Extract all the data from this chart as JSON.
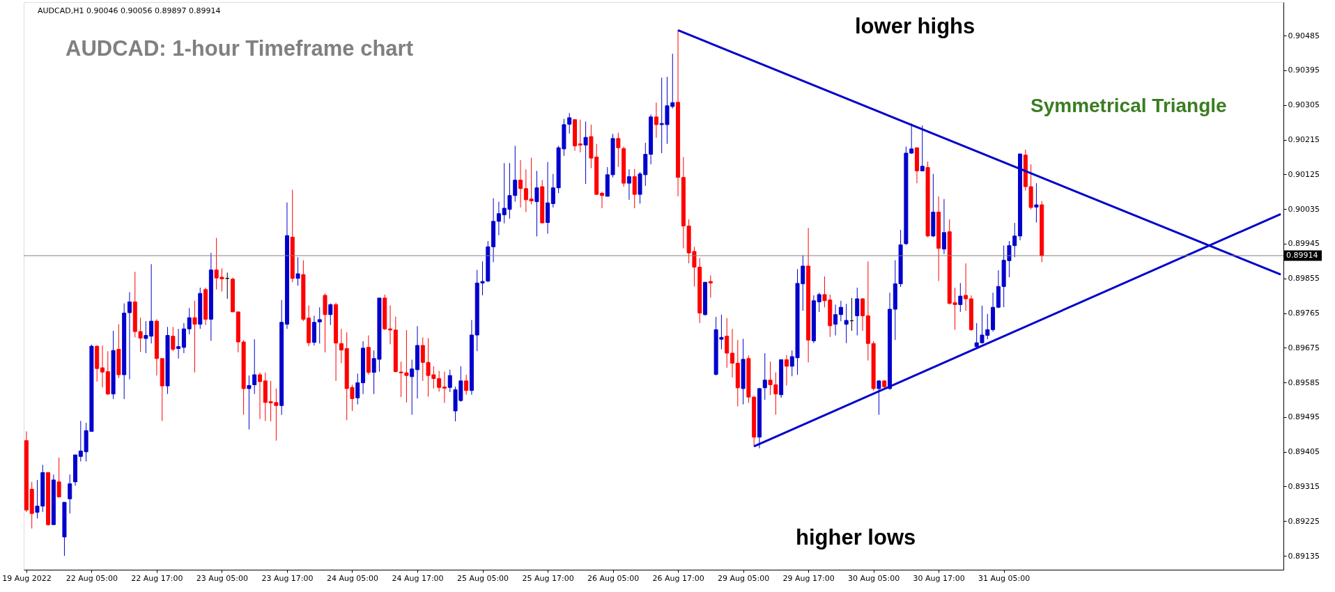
{
  "chart_data": {
    "type": "candlestick",
    "title": "AUDCAD: 1-hour Timeframe chart",
    "annotations": [
      "AUDCAD,H1  0.90046 0.90056 0.89897 0.89914",
      "lower highs",
      "higher lows",
      "Symmetrical Triangle"
    ],
    "categories": [
      "19 Aug 2022",
      null,
      null,
      null,
      null,
      null,
      null,
      null,
      null,
      null,
      null,
      null,
      "22 Aug 05:00",
      null,
      null,
      null,
      null,
      null,
      null,
      null,
      null,
      null,
      null,
      null,
      "22 Aug 17:00",
      null,
      null,
      null,
      null,
      null,
      null,
      null,
      null,
      null,
      null,
      null,
      "23 Aug 05:00",
      null,
      null,
      null,
      null,
      null,
      null,
      null,
      null,
      null,
      null,
      null,
      "23 Aug 17:00",
      null,
      null,
      null,
      null,
      null,
      null,
      null,
      null,
      null,
      null,
      null,
      "24 Aug 05:00",
      null,
      null,
      null,
      null,
      null,
      null,
      null,
      null,
      null,
      null,
      null,
      "24 Aug 17:00",
      null,
      null,
      null,
      null,
      null,
      null,
      null,
      null,
      null,
      null,
      null,
      "25 Aug 05:00",
      null,
      null,
      null,
      null,
      null,
      null,
      null,
      null,
      null,
      null,
      null,
      "25 Aug 17:00",
      null,
      null,
      null,
      null,
      null,
      null,
      null,
      null,
      null,
      null,
      null,
      "26 Aug 05:00",
      null,
      null,
      null,
      null,
      null,
      null,
      null,
      null,
      null,
      null,
      null,
      "26 Aug 17:00",
      null,
      null,
      null,
      null,
      null,
      null,
      null,
      null,
      null,
      null,
      null,
      "29 Aug 05:00",
      null,
      null,
      null,
      null,
      null,
      null,
      null,
      null,
      null,
      null,
      null,
      "29 Aug 17:00",
      null,
      null,
      null,
      null,
      null,
      null,
      null,
      null,
      null,
      null,
      null,
      "30 Aug 05:00",
      null,
      null,
      null,
      null,
      null,
      null,
      null,
      null,
      null,
      null,
      null,
      "30 Aug 17:00",
      null,
      null,
      null,
      null,
      null,
      null,
      null,
      null,
      null,
      null,
      null,
      "31 Aug 05:00",
      null,
      null,
      null,
      null,
      null,
      null,
      null,
      null,
      null,
      null,
      null,
      null,
      null,
      null,
      null,
      null,
      null,
      null,
      null,
      null,
      null,
      null,
      null,
      null,
      null,
      null,
      null,
      null,
      null,
      null,
      null,
      null,
      null,
      null,
      null,
      null,
      null,
      null,
      null,
      null,
      null,
      null,
      null,
      null,
      null,
      null,
      null,
      null,
      null,
      null,
      null
    ],
    "ohlc": [
      [
        0.89434,
        0.89458,
        0.89249,
        0.89254
      ],
      [
        0.89308,
        0.89327,
        0.89206,
        0.89245
      ],
      [
        0.89248,
        0.89332,
        0.89232,
        0.89264
      ],
      [
        0.89264,
        0.89371,
        0.89249,
        0.89351
      ],
      [
        0.89351,
        0.89351,
        0.89213,
        0.89216
      ],
      [
        0.89216,
        0.89346,
        0.89216,
        0.89332
      ],
      [
        0.89327,
        0.8939,
        0.89286,
        0.89288
      ],
      [
        0.89184,
        0.89274,
        0.89135,
        0.89274
      ],
      [
        0.89283,
        0.89346,
        0.89245,
        0.89322
      ],
      [
        0.89327,
        0.89397,
        0.89317,
        0.89397
      ],
      [
        0.89393,
        0.89485,
        0.8938,
        0.89407
      ],
      [
        0.89405,
        0.8948,
        0.8938,
        0.8946
      ],
      [
        0.89458,
        0.89683,
        0.89458,
        0.89679
      ],
      [
        0.89679,
        0.89681,
        0.89587,
        0.89621
      ],
      [
        0.89623,
        0.89681,
        0.89572,
        0.89612
      ],
      [
        0.89613,
        0.89666,
        0.89552,
        0.89555
      ],
      [
        0.89555,
        0.89719,
        0.89542,
        0.89668
      ],
      [
        0.89671,
        0.89736,
        0.89596,
        0.89605
      ],
      [
        0.89605,
        0.8979,
        0.89542,
        0.89765
      ],
      [
        0.89766,
        0.89819,
        0.89593,
        0.89794
      ],
      [
        0.89794,
        0.89872,
        0.89702,
        0.89717
      ],
      [
        0.89717,
        0.89753,
        0.89664,
        0.897
      ],
      [
        0.89699,
        0.89744,
        0.89661,
        0.89707
      ],
      [
        0.89705,
        0.89892,
        0.89686,
        0.89744
      ],
      [
        0.89744,
        0.89749,
        0.89603,
        0.89647
      ],
      [
        0.89647,
        0.89647,
        0.89485,
        0.89576
      ],
      [
        0.89576,
        0.89729,
        0.89555,
        0.89707
      ],
      [
        0.89705,
        0.89729,
        0.89666,
        0.89671
      ],
      [
        0.89673,
        0.89724,
        0.89647,
        0.89678
      ],
      [
        0.89676,
        0.89739,
        0.89661,
        0.89724
      ],
      [
        0.89724,
        0.89778,
        0.8971,
        0.89753
      ],
      [
        0.89753,
        0.89797,
        0.89611,
        0.89736
      ],
      [
        0.89736,
        0.89831,
        0.89724,
        0.89816
      ],
      [
        0.89826,
        0.89831,
        0.89734,
        0.89749
      ],
      [
        0.89749,
        0.89921,
        0.89693,
        0.89877
      ],
      [
        0.89877,
        0.8996,
        0.89826,
        0.89856
      ],
      [
        0.89858,
        0.89881,
        0.89821,
        0.89854
      ],
      [
        0.89855,
        0.8987,
        0.89802,
        0.89855
      ],
      [
        0.89853,
        0.89857,
        0.89768,
        0.89768
      ],
      [
        0.89768,
        0.89768,
        0.89663,
        0.8969
      ],
      [
        0.8969,
        0.89695,
        0.89501,
        0.89569
      ],
      [
        0.89569,
        0.89603,
        0.89463,
        0.89577
      ],
      [
        0.89579,
        0.89697,
        0.89555,
        0.89605
      ],
      [
        0.89605,
        0.89611,
        0.8949,
        0.89587
      ],
      [
        0.89589,
        0.89611,
        0.89485,
        0.89533
      ],
      [
        0.89535,
        0.89589,
        0.89484,
        0.89532
      ],
      [
        0.89533,
        0.89569,
        0.89434,
        0.89525
      ],
      [
        0.89525,
        0.89799,
        0.89501,
        0.89741
      ],
      [
        0.89736,
        0.90052,
        0.89724,
        0.89966
      ],
      [
        0.89962,
        0.90085,
        0.89845,
        0.89855
      ],
      [
        0.89855,
        0.8991,
        0.89836,
        0.89867
      ],
      [
        0.89865,
        0.89902,
        0.89744,
        0.89749
      ],
      [
        0.89752,
        0.89785,
        0.89679,
        0.89688
      ],
      [
        0.89689,
        0.89758,
        0.89681,
        0.89741
      ],
      [
        0.89742,
        0.8978,
        0.89686,
        0.89748
      ],
      [
        0.89811,
        0.89816,
        0.89663,
        0.89761
      ],
      [
        0.89761,
        0.8979,
        0.89734,
        0.89787
      ],
      [
        0.89787,
        0.89792,
        0.89589,
        0.89687
      ],
      [
        0.89686,
        0.89724,
        0.89635,
        0.89669
      ],
      [
        0.89673,
        0.89715,
        0.89487,
        0.89569
      ],
      [
        0.89572,
        0.89579,
        0.89511,
        0.89543
      ],
      [
        0.89545,
        0.89608,
        0.89528,
        0.89584
      ],
      [
        0.89584,
        0.89692,
        0.89555,
        0.89674
      ],
      [
        0.89676,
        0.89707,
        0.89605,
        0.89611
      ],
      [
        0.89611,
        0.89668,
        0.89555,
        0.89647
      ],
      [
        0.89645,
        0.89804,
        0.89613,
        0.89804
      ],
      [
        0.89804,
        0.89813,
        0.89721,
        0.89724
      ],
      [
        0.89724,
        0.89785,
        0.89684,
        0.89721
      ],
      [
        0.89721,
        0.89756,
        0.89611,
        0.89613
      ],
      [
        0.89612,
        0.89639,
        0.89547,
        0.8961
      ],
      [
        0.8961,
        0.89721,
        0.89533,
        0.89603
      ],
      [
        0.896,
        0.89644,
        0.89501,
        0.8962
      ],
      [
        0.89618,
        0.89731,
        0.89543,
        0.89681
      ],
      [
        0.89681,
        0.89702,
        0.89589,
        0.89637
      ],
      [
        0.89637,
        0.897,
        0.89548,
        0.89603
      ],
      [
        0.89605,
        0.89627,
        0.89569,
        0.89595
      ],
      [
        0.89595,
        0.89615,
        0.89561,
        0.89572
      ],
      [
        0.89573,
        0.89613,
        0.89532,
        0.8957
      ],
      [
        0.89572,
        0.89618,
        0.8956,
        0.89603
      ],
      [
        0.89511,
        0.89574,
        0.89484,
        0.89566
      ],
      [
        0.89538,
        0.89627,
        0.89535,
        0.89589
      ],
      [
        0.89589,
        0.89605,
        0.89553,
        0.89564
      ],
      [
        0.89564,
        0.89747,
        0.89553,
        0.89708
      ],
      [
        0.89708,
        0.89877,
        0.89666,
        0.89843
      ],
      [
        0.89843,
        0.89899,
        0.89811,
        0.89847
      ],
      [
        0.89848,
        0.89952,
        0.89845,
        0.89937
      ],
      [
        0.89937,
        0.90063,
        0.89897,
        0.90003
      ],
      [
        0.90003,
        0.90054,
        0.89967,
        0.90023
      ],
      [
        0.9002,
        0.90154,
        0.89998,
        0.90037
      ],
      [
        0.90034,
        0.90154,
        0.9001,
        0.9007
      ],
      [
        0.9007,
        0.90199,
        0.90054,
        0.9011
      ],
      [
        0.9011,
        0.90162,
        0.90039,
        0.90088
      ],
      [
        0.90088,
        0.90138,
        0.90027,
        0.90059
      ],
      [
        0.90061,
        0.90168,
        0.90047,
        0.90056
      ],
      [
        0.90054,
        0.90134,
        0.89964,
        0.9009
      ],
      [
        0.90093,
        0.9011,
        0.89998,
        0.89999
      ],
      [
        0.9,
        0.90157,
        0.89971,
        0.90051
      ],
      [
        0.90049,
        0.90126,
        0.90039,
        0.9009
      ],
      [
        0.9009,
        0.90199,
        0.90076,
        0.90194
      ],
      [
        0.90191,
        0.90269,
        0.90173,
        0.90254
      ],
      [
        0.90255,
        0.90284,
        0.90231,
        0.90272
      ],
      [
        0.90267,
        0.90267,
        0.90186,
        0.90199
      ],
      [
        0.90204,
        0.90267,
        0.90182,
        0.90201
      ],
      [
        0.90201,
        0.90262,
        0.901,
        0.90221
      ],
      [
        0.90223,
        0.90254,
        0.90141,
        0.90167
      ],
      [
        0.9017,
        0.90204,
        0.90071,
        0.90073
      ],
      [
        0.90076,
        0.9008,
        0.90037,
        0.9007
      ],
      [
        0.90068,
        0.90144,
        0.90068,
        0.90124
      ],
      [
        0.90124,
        0.9023,
        0.90117,
        0.90218
      ],
      [
        0.90218,
        0.90233,
        0.90144,
        0.90194
      ],
      [
        0.90192,
        0.90197,
        0.90093,
        0.90102
      ],
      [
        0.90102,
        0.90138,
        0.90059,
        0.90119
      ],
      [
        0.90119,
        0.90139,
        0.90037,
        0.90073
      ],
      [
        0.90073,
        0.90131,
        0.90049,
        0.90126
      ],
      [
        0.90124,
        0.90207,
        0.90095,
        0.90177
      ],
      [
        0.90177,
        0.9028,
        0.90151,
        0.90274
      ],
      [
        0.90274,
        0.90311,
        0.9022,
        0.90254
      ],
      [
        0.90254,
        0.90376,
        0.9018,
        0.90257
      ],
      [
        0.90254,
        0.90378,
        0.90204,
        0.90303
      ],
      [
        0.90301,
        0.90438,
        0.90296,
        0.90311
      ],
      [
        0.90312,
        0.90499,
        0.90068,
        0.90117
      ],
      [
        0.90117,
        0.9017,
        0.89933,
        0.89991
      ],
      [
        0.89991,
        0.90008,
        0.89894,
        0.89921
      ],
      [
        0.89925,
        0.89937,
        0.89834,
        0.89884
      ],
      [
        0.89884,
        0.89908,
        0.89739,
        0.89765
      ],
      [
        0.89761,
        0.89845,
        0.89758,
        0.89845
      ],
      [
        0.89847,
        0.89863,
        0.89805,
        0.89843
      ],
      [
        0.89606,
        0.89755,
        0.89603,
        0.89722
      ],
      [
        0.89697,
        0.89761,
        0.89671,
        0.89702
      ],
      [
        0.89705,
        0.89752,
        0.89623,
        0.89661
      ],
      [
        0.89661,
        0.89724,
        0.89598,
        0.89635
      ],
      [
        0.89635,
        0.89695,
        0.89523,
        0.89571
      ],
      [
        0.89569,
        0.89698,
        0.89528,
        0.89645
      ],
      [
        0.89647,
        0.89655,
        0.89532,
        0.89547
      ],
      [
        0.89547,
        0.8955,
        0.89419,
        0.89443
      ],
      [
        0.89443,
        0.89571,
        0.89414,
        0.89569
      ],
      [
        0.89571,
        0.89661,
        0.8954,
        0.89591
      ],
      [
        0.89591,
        0.89639,
        0.89552,
        0.89579
      ],
      [
        0.89579,
        0.89611,
        0.89501,
        0.89555
      ],
      [
        0.89553,
        0.89644,
        0.89545,
        0.89644
      ],
      [
        0.89644,
        0.89656,
        0.89577,
        0.89627
      ],
      [
        0.89627,
        0.89668,
        0.89601,
        0.89652
      ],
      [
        0.89649,
        0.89879,
        0.89605,
        0.89842
      ],
      [
        0.89841,
        0.89915,
        0.89771,
        0.89887
      ],
      [
        0.89887,
        0.89986,
        0.89637,
        0.89695
      ],
      [
        0.89693,
        0.89811,
        0.89687,
        0.89797
      ],
      [
        0.89794,
        0.89818,
        0.89768,
        0.89813
      ],
      [
        0.89813,
        0.8986,
        0.8978,
        0.89797
      ],
      [
        0.89799,
        0.89813,
        0.89703,
        0.89732
      ],
      [
        0.89736,
        0.89787,
        0.89707,
        0.89761
      ],
      [
        0.89761,
        0.89797,
        0.89744,
        0.8978
      ],
      [
        0.89736,
        0.89789,
        0.89687,
        0.89746
      ],
      [
        0.89745,
        0.89804,
        0.89719,
        0.89745
      ],
      [
        0.89758,
        0.89831,
        0.89707,
        0.89802
      ],
      [
        0.89802,
        0.89804,
        0.89719,
        0.89758
      ],
      [
        0.89758,
        0.89899,
        0.89642,
        0.89686
      ],
      [
        0.89686,
        0.89692,
        0.89564,
        0.89569
      ],
      [
        0.89569,
        0.89591,
        0.89501,
        0.89589
      ],
      [
        0.89589,
        0.89591,
        0.89569,
        0.89574
      ],
      [
        0.89569,
        0.89818,
        0.89566,
        0.89775
      ],
      [
        0.89775,
        0.89902,
        0.89695,
        0.89841
      ],
      [
        0.89841,
        0.89981,
        0.89833,
        0.89942
      ],
      [
        0.89945,
        0.90197,
        0.89942,
        0.9018
      ],
      [
        0.9018,
        0.90257,
        0.90178,
        0.90191
      ],
      [
        0.90194,
        0.90194,
        0.90102,
        0.90134
      ],
      [
        0.90134,
        0.90252,
        0.90133,
        0.90146
      ],
      [
        0.90143,
        0.90158,
        0.89962,
        0.89965
      ],
      [
        0.89965,
        0.90126,
        0.89962,
        0.90027
      ],
      [
        0.90027,
        0.90068,
        0.89848,
        0.89933
      ],
      [
        0.89931,
        0.90061,
        0.89918,
        0.89974
      ],
      [
        0.89976,
        0.90008,
        0.89787,
        0.8979
      ],
      [
        0.89792,
        0.89831,
        0.89722,
        0.89787
      ],
      [
        0.89787,
        0.89843,
        0.89768,
        0.89809
      ],
      [
        0.89811,
        0.89894,
        0.89771,
        0.89802
      ],
      [
        0.89802,
        0.89811,
        0.89719,
        0.89722
      ],
      [
        0.89678,
        0.89739,
        0.89673,
        0.89688
      ],
      [
        0.89688,
        0.89784,
        0.89686,
        0.89708
      ],
      [
        0.89707,
        0.89763,
        0.89697,
        0.89722
      ],
      [
        0.89722,
        0.89818,
        0.89717,
        0.8978
      ],
      [
        0.8978,
        0.89876,
        0.89778,
        0.89834
      ],
      [
        0.89834,
        0.8994,
        0.8978,
        0.89902
      ],
      [
        0.89901,
        0.89952,
        0.89858,
        0.8994
      ],
      [
        0.8994,
        0.89999,
        0.8991,
        0.89965
      ],
      [
        0.89965,
        0.90178,
        0.89954,
        0.90178
      ],
      [
        0.90175,
        0.90189,
        0.90083,
        0.90093
      ],
      [
        0.90093,
        0.90151,
        0.90034,
        0.90039
      ],
      [
        0.9004,
        0.90102,
        0.9,
        0.90046
      ],
      [
        0.90046,
        0.90056,
        0.89897,
        0.89914
      ],
      null,
      null,
      null,
      null,
      null,
      null,
      null,
      null,
      null,
      null,
      null,
      null,
      null,
      null,
      null,
      null,
      null,
      null,
      null,
      null,
      null,
      null,
      null,
      null,
      null,
      null,
      null,
      null,
      null,
      null,
      null,
      null,
      null,
      null,
      null,
      null,
      null,
      null,
      null,
      null,
      null,
      null,
      null,
      null
    ],
    "colors": [
      "#ff0000",
      "#ff0000",
      "#0000cc",
      "#0000cc",
      "#ff0000",
      "#0000cc",
      "#ff0000",
      "#0000cc",
      "#0000cc",
      "#0000cc",
      "#0000cc",
      "#0000cc",
      "#0000cc",
      "#ff0000",
      "#ff0000",
      "#ff0000",
      "#0000cc",
      "#ff0000",
      "#0000cc",
      "#0000cc",
      "#ff0000",
      "#ff0000",
      "#0000cc",
      "#0000cc",
      "#ff0000",
      "#ff0000",
      "#0000cc",
      "#ff0000",
      "#0000cc",
      "#0000cc",
      "#0000cc",
      "#ff0000",
      "#0000cc",
      "#ff0000",
      "#0000cc",
      "#ff0000",
      "#ff0000",
      "#000000",
      "#ff0000",
      "#ff0000",
      "#ff0000",
      "#0000cc",
      "#0000cc",
      "#ff0000",
      "#ff0000",
      "#ff0000",
      "#ff0000",
      "#0000cc",
      "#0000cc",
      "#ff0000",
      "#0000cc",
      "#ff0000",
      "#ff0000",
      "#0000cc",
      "#0000cc",
      "#ff0000",
      "#0000cc",
      "#ff0000",
      "#ff0000",
      "#ff0000",
      "#ff0000",
      "#0000cc",
      "#0000cc",
      "#ff0000",
      "#0000cc",
      "#0000cc",
      "#ff0000",
      "#ff0000",
      "#ff0000",
      "#ff0000",
      "#ff0000",
      "#0000cc",
      "#0000cc",
      "#ff0000",
      "#ff0000",
      "#ff0000",
      "#ff0000",
      "#ff0000",
      "#0000cc",
      "#0000cc",
      "#0000cc",
      "#ff0000",
      "#0000cc",
      "#0000cc",
      "#0000cc",
      "#0000cc",
      "#0000cc",
      "#0000cc",
      "#0000cc",
      "#0000cc",
      "#0000cc",
      "#ff0000",
      "#ff0000",
      "#ff0000",
      "#0000cc",
      "#ff0000",
      "#0000cc",
      "#0000cc",
      "#0000cc",
      "#0000cc",
      "#0000cc",
      "#ff0000",
      "#ff0000",
      "#0000cc",
      "#ff0000",
      "#ff0000",
      "#ff0000",
      "#0000cc",
      "#0000cc",
      "#ff0000",
      "#ff0000",
      "#0000cc",
      "#ff0000",
      "#0000cc",
      "#0000cc",
      "#0000cc",
      "#ff0000",
      "#0000cc",
      "#0000cc",
      "#0000cc",
      "#ff0000",
      "#ff0000",
      "#ff0000",
      "#ff0000",
      "#ff0000",
      "#0000cc",
      "#ff0000",
      "#0000cc",
      "#0000cc",
      "#ff0000",
      "#ff0000",
      "#ff0000",
      "#0000cc",
      "#ff0000",
      "#ff0000",
      "#0000cc",
      "#0000cc",
      "#ff0000",
      "#ff0000",
      "#0000cc",
      "#ff0000",
      "#0000cc",
      "#0000cc",
      "#0000cc",
      "#ff0000",
      "#0000cc",
      "#0000cc",
      "#ff0000",
      "#ff0000",
      "#0000cc",
      "#0000cc",
      "#0000cc",
      "#000000",
      "#0000cc",
      "#ff0000",
      "#ff0000",
      "#ff0000",
      "#0000cc",
      "#ff0000",
      "#0000cc",
      "#0000cc",
      "#0000cc",
      "#0000cc",
      "#0000cc",
      "#ff0000",
      "#0000cc",
      "#ff0000",
      "#0000cc",
      "#ff0000",
      "#0000cc",
      "#ff0000",
      "#ff0000",
      "#0000cc",
      "#ff0000",
      "#ff0000",
      "#0000cc",
      "#0000cc",
      "#0000cc",
      "#0000cc",
      "#0000cc",
      "#0000cc",
      "#0000cc",
      "#0000cc",
      "#0000cc",
      "#ff0000",
      "#ff0000",
      "#0000cc",
      "#ff0000",
      null,
      null,
      null,
      null,
      null,
      null,
      null,
      null,
      null,
      null,
      null,
      null,
      null,
      null,
      null,
      null,
      null,
      null,
      null,
      null,
      null,
      null,
      null,
      null,
      null,
      null,
      null,
      null,
      null,
      null,
      null,
      null,
      null,
      null,
      null,
      null,
      null,
      null,
      null,
      null,
      null,
      null,
      null,
      null
    ],
    "series": [
      {
        "type": "line",
        "color": "#0000cc",
        "values": [
          null,
          null,
          null,
          null,
          null,
          null,
          null,
          null,
          null,
          null,
          null,
          null,
          null,
          null,
          null,
          null,
          null,
          null,
          null,
          null,
          null,
          null,
          null,
          null,
          null,
          null,
          null,
          null,
          null,
          null,
          null,
          null,
          null,
          null,
          null,
          null,
          null,
          null,
          null,
          null,
          null,
          null,
          null,
          null,
          null,
          null,
          null,
          null,
          null,
          null,
          null,
          null,
          null,
          null,
          null,
          null,
          null,
          null,
          null,
          null,
          null,
          null,
          null,
          null,
          null,
          null,
          null,
          null,
          null,
          null,
          null,
          null,
          null,
          null,
          null,
          null,
          null,
          null,
          null,
          null,
          null,
          null,
          null,
          null,
          null,
          null,
          null,
          null,
          null,
          null,
          null,
          null,
          null,
          null,
          null,
          null,
          null,
          null,
          null,
          null,
          null,
          null,
          null,
          null,
          null,
          null,
          null,
          null,
          null,
          null,
          null,
          null,
          null,
          null,
          null,
          null,
          null,
          null,
          null,
          null,
          0.90499,
          null,
          null,
          null,
          null,
          null,
          null,
          null,
          null,
          null,
          null,
          null,
          null,
          null,
          null,
          null,
          null,
          null,
          null,
          null,
          null,
          null,
          null,
          null,
          null,
          null,
          null,
          null,
          null,
          null,
          null,
          null,
          null,
          null,
          null,
          null,
          null,
          null,
          null,
          null,
          null,
          null,
          null,
          null,
          null,
          null,
          null,
          null,
          null,
          null,
          null,
          null,
          null,
          null,
          null,
          null,
          null,
          null,
          null,
          null,
          null,
          null,
          null,
          null,
          null,
          null,
          null,
          null,
          null,
          null,
          null,
          null,
          null,
          null,
          null,
          null,
          null,
          null,
          null,
          null,
          null,
          null,
          null,
          null,
          null,
          null,
          null,
          null,
          null,
          null,
          null,
          null,
          null,
          null,
          null,
          null,
          null,
          null,
          null,
          null,
          null,
          null,
          null,
          null,
          null,
          null,
          null,
          null,
          null,
          null,
          null,
          0.89865
        ]
      },
      {
        "type": "line",
        "color": "#0000cc",
        "values": [
          null,
          null,
          null,
          null,
          null,
          null,
          null,
          null,
          null,
          null,
          null,
          null,
          null,
          null,
          null,
          null,
          null,
          null,
          null,
          null,
          null,
          null,
          null,
          null,
          null,
          null,
          null,
          null,
          null,
          null,
          null,
          null,
          null,
          null,
          null,
          null,
          null,
          null,
          null,
          null,
          null,
          null,
          null,
          null,
          null,
          null,
          null,
          null,
          null,
          null,
          null,
          null,
          null,
          null,
          null,
          null,
          null,
          null,
          null,
          null,
          null,
          null,
          null,
          null,
          null,
          null,
          null,
          null,
          null,
          null,
          null,
          null,
          null,
          null,
          null,
          null,
          null,
          null,
          null,
          null,
          null,
          null,
          null,
          null,
          null,
          null,
          null,
          null,
          null,
          null,
          null,
          null,
          null,
          null,
          null,
          null,
          null,
          null,
          null,
          null,
          null,
          null,
          null,
          null,
          null,
          null,
          null,
          null,
          null,
          null,
          null,
          null,
          null,
          null,
          null,
          null,
          null,
          null,
          null,
          null,
          null,
          null,
          null,
          null,
          null,
          null,
          null,
          null,
          null,
          null,
          null,
          null,
          null,
          null,
          0.89419,
          null,
          null,
          null,
          null,
          null,
          null,
          null,
          null,
          null,
          null,
          null,
          null,
          null,
          null,
          null,
          null,
          null,
          null,
          null,
          null,
          null,
          null,
          null,
          null,
          null,
          null,
          null,
          null,
          null,
          null,
          null,
          null,
          null,
          null,
          null,
          null,
          null,
          null,
          null,
          null,
          null,
          null,
          null,
          null,
          null,
          null,
          null,
          null,
          null,
          null,
          null,
          null,
          null,
          null,
          null,
          null,
          null,
          null,
          null,
          null,
          null,
          null,
          null,
          null,
          null,
          null,
          null,
          null,
          null,
          null,
          null,
          null,
          null,
          null,
          null,
          null,
          null,
          null,
          null,
          null,
          null,
          null,
          null,
          null,
          null,
          null,
          null,
          null,
          null,
          null,
          null,
          null,
          null,
          null,
          null,
          null,
          0.90022
        ]
      }
    ],
    "ylim": [
      0.89099,
      0.90572
    ],
    "yticks": [
      0.89135,
      0.89225,
      0.89315,
      0.89405,
      0.89495,
      0.89585,
      0.89675,
      0.89765,
      0.89855,
      0.89945,
      0.90035,
      0.90125,
      0.90215,
      0.90305,
      0.90395,
      0.90485
    ],
    "ref_lines": [
      {
        "axis": "y",
        "value": 0.89914,
        "label": "0.89914",
        "color": "#808080"
      }
    ]
  }
}
